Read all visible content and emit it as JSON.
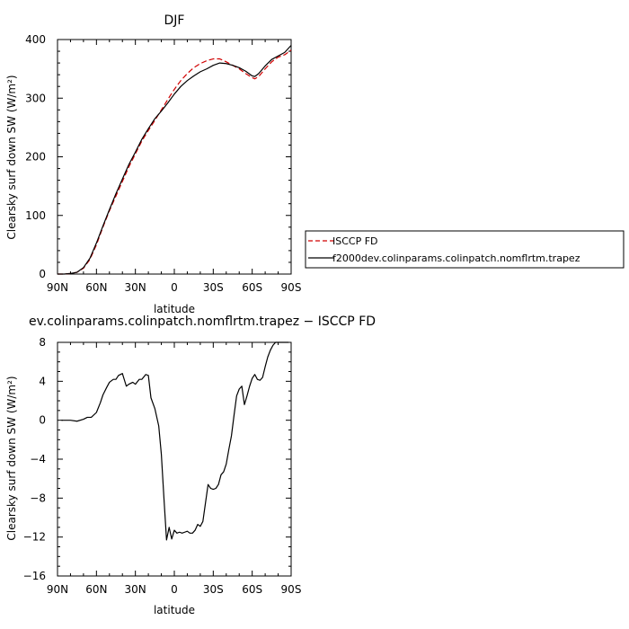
{
  "chart_data": [
    {
      "type": "line",
      "title": "DJF",
      "xlabel": "latitude",
      "ylabel": "Clearsky surf down SW (W/m²)",
      "xlim": [
        90,
        -90
      ],
      "ylim": [
        0,
        400
      ],
      "x_tick_labels": [
        "90N",
        "60N",
        "30N",
        "0",
        "30S",
        "60S",
        "90S"
      ],
      "y_tick_labels": [
        "0",
        "100",
        "200",
        "300",
        "400"
      ],
      "legend_placement": "right",
      "series": [
        {
          "name": "ISCCP FD",
          "color": "#d00000",
          "dash": "dashed",
          "x": [
            90,
            85,
            80,
            75,
            70,
            65,
            60,
            55,
            50,
            45,
            40,
            35,
            30,
            25,
            20,
            15,
            10,
            5,
            0,
            -5,
            -10,
            -15,
            -20,
            -25,
            -30,
            -35,
            -40,
            -45,
            -50,
            -55,
            -60,
            -62,
            -65,
            -70,
            -75,
            -80,
            -85,
            -90
          ],
          "y": [
            0,
            0,
            1,
            3,
            10,
            25,
            50,
            80,
            108,
            133,
            158,
            183,
            205,
            227,
            245,
            262,
            280,
            298,
            315,
            330,
            342,
            352,
            359,
            364,
            367,
            367,
            362,
            356,
            350,
            342,
            335,
            333,
            337,
            350,
            362,
            370,
            374,
            382
          ]
        },
        {
          "name": "f2000dev.colinparams.colinpatch.nomflrtm.trapez",
          "color": "#000000",
          "dash": "solid",
          "x": [
            90,
            85,
            80,
            75,
            70,
            65,
            60,
            55,
            50,
            45,
            40,
            35,
            30,
            25,
            20,
            15,
            10,
            5,
            0,
            -5,
            -10,
            -15,
            -20,
            -25,
            -30,
            -35,
            -40,
            -45,
            -50,
            -55,
            -60,
            -62,
            -65,
            -70,
            -75,
            -80,
            -85,
            -90
          ],
          "y": [
            0,
            0,
            1,
            3,
            11,
            27,
            53,
            82,
            110,
            137,
            162,
            187,
            208,
            230,
            248,
            265,
            278,
            292,
            307,
            320,
            330,
            338,
            345,
            350,
            356,
            360,
            359,
            356,
            352,
            346,
            338,
            337,
            342,
            355,
            366,
            372,
            378,
            390
          ]
        }
      ]
    },
    {
      "type": "line",
      "title": "ev.colinparams.colinpatch.nomflrtm.trapez − ISCCP FD",
      "xlabel": "latitude",
      "ylabel": "Clearsky surf down SW (W/m²)",
      "xlim": [
        90,
        -90
      ],
      "ylim": [
        -16,
        8
      ],
      "x_tick_labels": [
        "90N",
        "60N",
        "30N",
        "0",
        "30S",
        "60S",
        "90S"
      ],
      "y_tick_labels": [
        "−16",
        "−12",
        "−8",
        "−4",
        "0",
        "4",
        "8"
      ],
      "series": [
        {
          "color": "#000000",
          "dash": "solid",
          "x": [
            87,
            80,
            75,
            70,
            67,
            64,
            60,
            57,
            55,
            52,
            50,
            47,
            45,
            43,
            40,
            37,
            35,
            32,
            30,
            27,
            25,
            22,
            20,
            18,
            15,
            12,
            10,
            8,
            6,
            4,
            2,
            0,
            -2,
            -4,
            -6,
            -8,
            -10,
            -12,
            -14,
            -16,
            -18,
            -20,
            -22,
            -24,
            -26,
            -28,
            -30,
            -32,
            -34,
            -36,
            -38,
            -40,
            -42,
            -44,
            -46,
            -48,
            -50,
            -52,
            -54,
            -56,
            -58,
            -60,
            -62,
            -64,
            -66,
            -68,
            -70,
            -72,
            -74,
            -76,
            -78,
            -80,
            -82,
            -84,
            -86,
            -88
          ],
          "y": [
            0,
            0,
            -0.1,
            0.1,
            0.3,
            0.3,
            0.8,
            1.8,
            2.6,
            3.4,
            3.9,
            4.2,
            4.2,
            4.6,
            4.8,
            3.5,
            3.7,
            3.9,
            3.7,
            4.2,
            4.2,
            4.7,
            4.6,
            2.3,
            1.2,
            -0.6,
            -3.5,
            -8.0,
            -12.3,
            -11.0,
            -12.2,
            -11.3,
            -11.6,
            -11.5,
            -11.6,
            -11.5,
            -11.4,
            -11.6,
            -11.6,
            -11.3,
            -10.7,
            -10.9,
            -10.4,
            -8.5,
            -6.6,
            -7.0,
            -7.1,
            -7.0,
            -6.6,
            -5.6,
            -5.3,
            -4.5,
            -3.0,
            -1.6,
            0.5,
            2.5,
            3.2,
            3.5,
            1.6,
            2.5,
            3.5,
            4.3,
            4.7,
            4.2,
            4.1,
            4.4,
            5.5,
            6.5,
            7.2,
            7.7,
            8.0,
            8.0,
            8.0,
            8.0,
            8.0,
            8.0
          ]
        }
      ]
    }
  ]
}
